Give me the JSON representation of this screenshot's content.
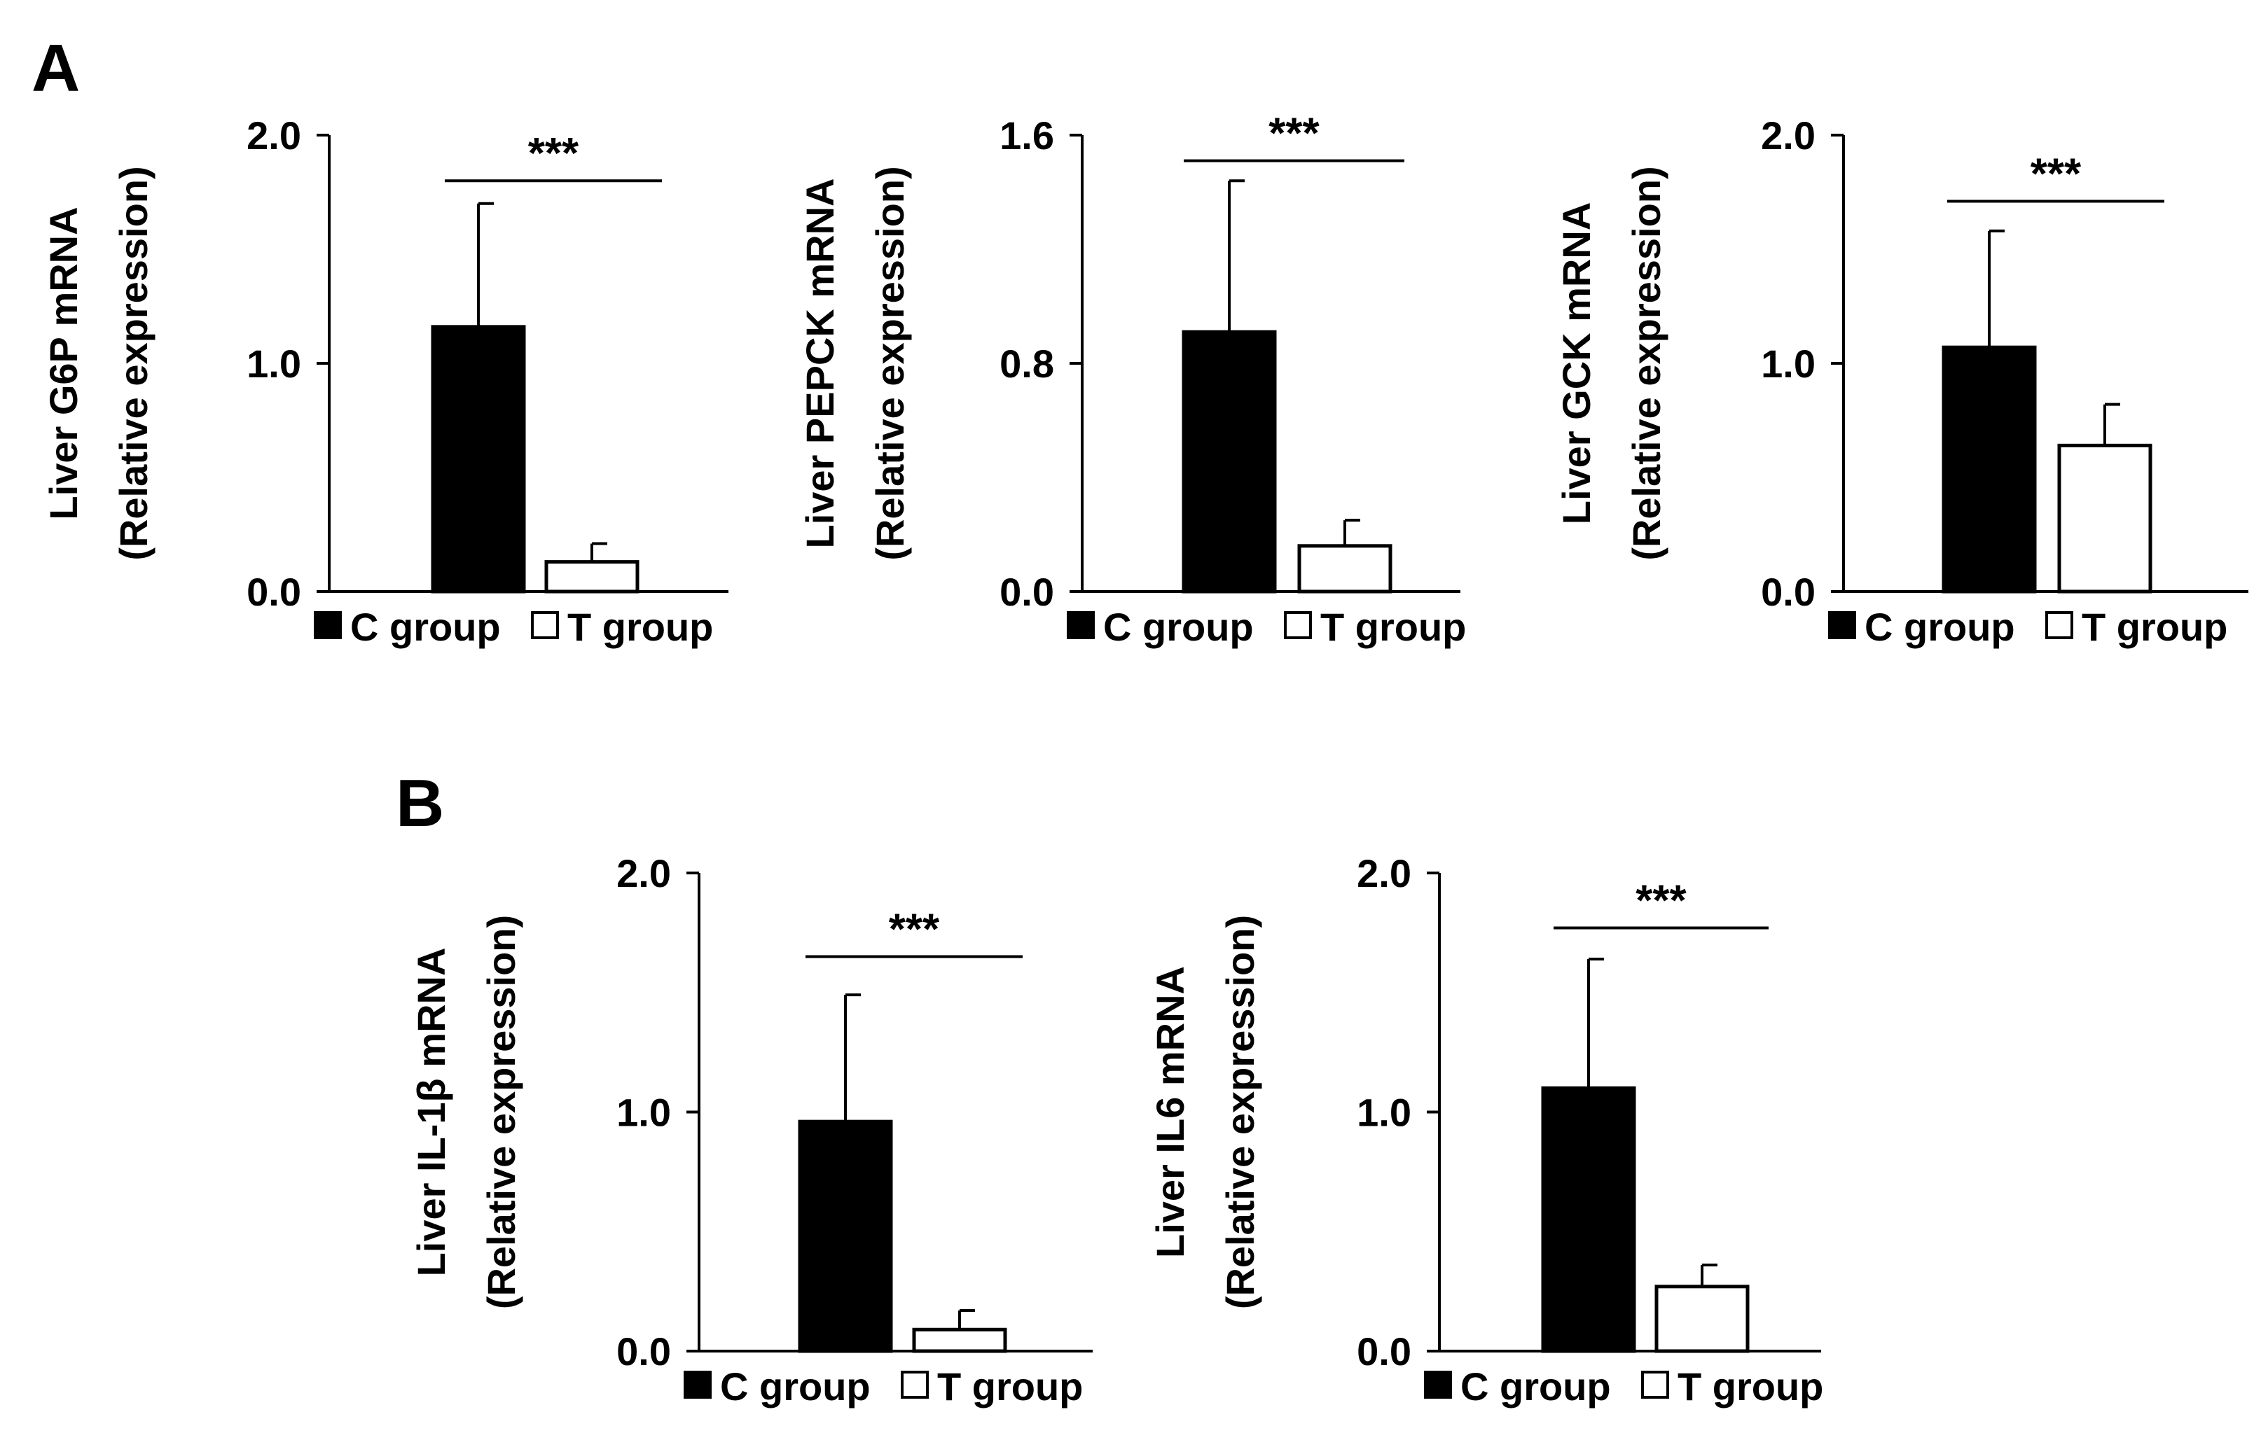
{
  "figure": {
    "panel_labels": [
      "A",
      "B"
    ]
  },
  "chart_data": [
    {
      "type": "bar",
      "panel": "A",
      "title": "",
      "ylabel_line1": "Liver G6P mRNA",
      "ylabel_line2": "(Relative expression)",
      "categories": [
        "C group",
        "T group"
      ],
      "values": [
        1.16,
        0.13
      ],
      "errors": [
        0.54,
        0.08
      ],
      "ylim": [
        0,
        2.0
      ],
      "yticks": [
        0.0,
        1.0,
        2.0
      ],
      "ytick_labels": [
        "0.0",
        "1.0",
        "2.0"
      ],
      "significance": "***",
      "sig_level": 1.8,
      "legend": [
        "C group",
        "T group"
      ],
      "colors": [
        "#000000",
        "#ffffff"
      ]
    },
    {
      "type": "bar",
      "panel": "A",
      "title": "",
      "ylabel_line1": "Liver PEPCK mRNA",
      "ylabel_line2": "(Relative expression)",
      "categories": [
        "C group",
        "T group"
      ],
      "values": [
        0.91,
        0.16
      ],
      "errors": [
        0.53,
        0.09
      ],
      "ylim": [
        0,
        1.6
      ],
      "yticks": [
        0.0,
        0.8,
        1.6
      ],
      "ytick_labels": [
        "0.0",
        "0.8",
        "1.6"
      ],
      "significance": "***",
      "sig_level": 1.51,
      "legend": [
        "C group",
        "T group"
      ],
      "colors": [
        "#000000",
        "#ffffff"
      ]
    },
    {
      "type": "bar",
      "panel": "A",
      "title": "",
      "ylabel_line1": "Liver GCK mRNA",
      "ylabel_line2": "(Relative expression)",
      "categories": [
        "C group",
        "T group"
      ],
      "values": [
        1.07,
        0.64
      ],
      "errors": [
        0.51,
        0.18
      ],
      "ylim": [
        0,
        2.0
      ],
      "yticks": [
        0.0,
        1.0,
        2.0
      ],
      "ytick_labels": [
        "0.0",
        "1.0",
        "2.0"
      ],
      "significance": "***",
      "sig_level": 1.71,
      "legend": [
        "C group",
        "T group"
      ],
      "colors": [
        "#000000",
        "#ffffff"
      ]
    },
    {
      "type": "bar",
      "panel": "B",
      "title": "",
      "ylabel_line1": "Liver IL-1β mRNA",
      "ylabel_line2": "(Relative expression)",
      "categories": [
        "C group",
        "T group"
      ],
      "values": [
        0.96,
        0.09
      ],
      "errors": [
        0.53,
        0.08
      ],
      "ylim": [
        0,
        2.0
      ],
      "yticks": [
        0.0,
        1.0,
        2.0
      ],
      "ytick_labels": [
        "0.0",
        "1.0",
        "2.0"
      ],
      "significance": "***",
      "sig_level": 1.65,
      "legend": [
        "C group",
        "T group"
      ],
      "colors": [
        "#000000",
        "#ffffff"
      ]
    },
    {
      "type": "bar",
      "panel": "B",
      "title": "",
      "ylabel_line1": "Liver IL6 mRNA",
      "ylabel_line2": "(Relative expression)",
      "categories": [
        "C group",
        "T group"
      ],
      "values": [
        1.1,
        0.27
      ],
      "errors": [
        0.54,
        0.09
      ],
      "ylim": [
        0,
        2.0
      ],
      "yticks": [
        0.0,
        1.0,
        2.0
      ],
      "ytick_labels": [
        "0.0",
        "1.0",
        "2.0"
      ],
      "significance": "***",
      "sig_level": 1.77,
      "legend": [
        "C group",
        "T group"
      ],
      "colors": [
        "#000000",
        "#ffffff"
      ]
    }
  ]
}
